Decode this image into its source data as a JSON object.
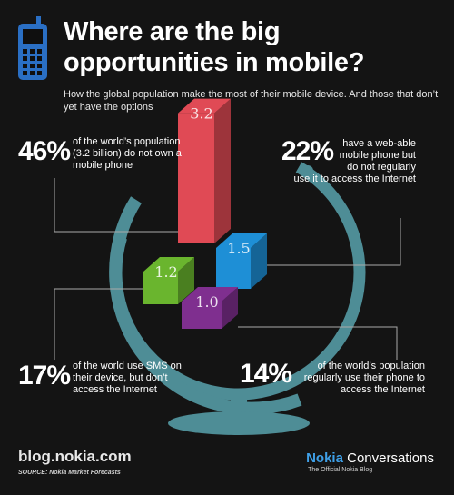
{
  "header": {
    "title": "Where are the big opportunities in mobile?",
    "subtitle": "How the global population make the most of their mobile device. And those that don’t yet have the options"
  },
  "stats": [
    {
      "percent": "46%",
      "text": "of the world’s population (3.2 billion) do not own a mobile phone"
    },
    {
      "percent": "22%",
      "text": "have a web-able mobile phone but do not regularly use it to access the Internet"
    },
    {
      "percent": "17%",
      "text": "of the world use SMS on their device, but don’t access the Internet"
    },
    {
      "percent": "14%",
      "text": "of the world’s population regularly use their phone to access the Internet"
    }
  ],
  "chart_data": {
    "type": "bar",
    "categories": [
      "Do not own a mobile phone",
      "Web-able phone, no regular Internet use",
      "SMS only",
      "Regular mobile Internet use"
    ],
    "values": [
      3.2,
      1.5,
      1.2,
      1.0
    ],
    "labels": [
      "3.2",
      "1.5",
      "1.2",
      "1.0"
    ],
    "colors": [
      "#e04a55",
      "#1e8fd6",
      "#6ab52e",
      "#7f2f8f"
    ]
  },
  "footer": {
    "url": "blog.nokia.com",
    "source": "SOURCE: Nokia Market Forecasts",
    "brand_bold": "Nokia",
    "brand_rest": " Conversations",
    "brand_tagline": "The Official Nokia Blog"
  },
  "icons": {
    "phone": "mobile-phone-icon"
  }
}
